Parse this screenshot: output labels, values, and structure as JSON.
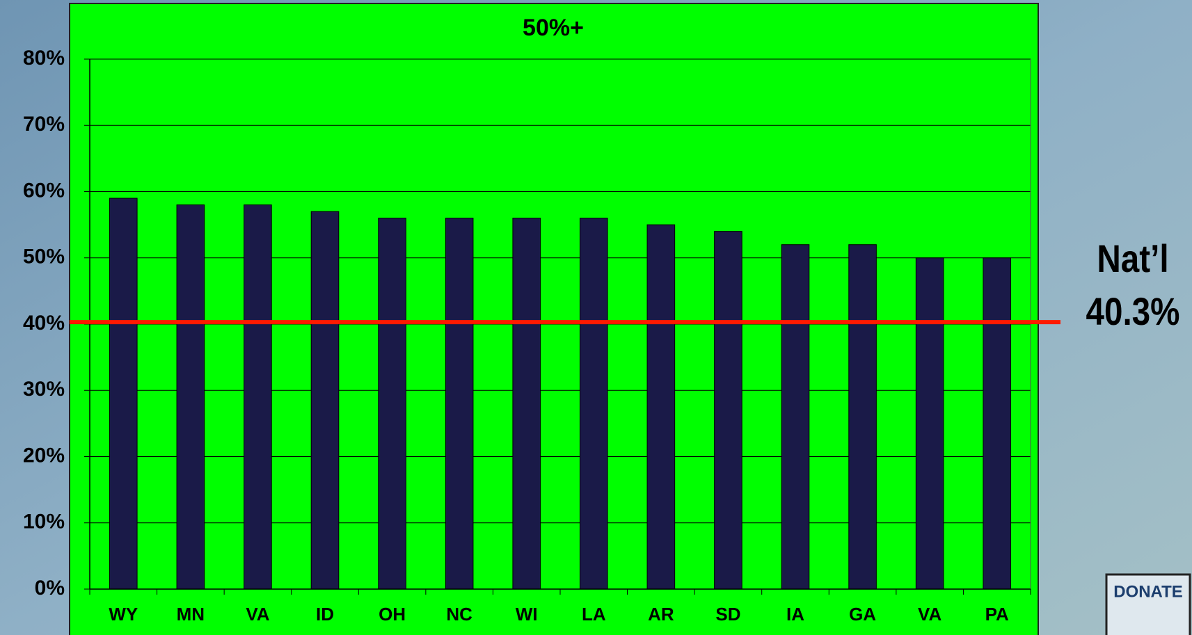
{
  "chart_data": {
    "type": "bar",
    "title": "50%+",
    "categories": [
      "WY",
      "MN",
      "VA",
      "ID",
      "OH",
      "NC",
      "WI",
      "LA",
      "AR",
      "SD",
      "IA",
      "GA",
      "VA",
      "PA"
    ],
    "values": [
      59,
      58,
      58,
      57,
      56,
      56,
      56,
      56,
      55,
      54,
      52,
      52,
      50,
      50
    ],
    "color": "#1a1a48",
    "ylim": [
      0,
      80
    ],
    "yticks": [
      {
        "value": 0,
        "label": "0%"
      },
      {
        "value": 10,
        "label": "10%"
      },
      {
        "value": 20,
        "label": "20%"
      },
      {
        "value": 30,
        "label": "30%"
      },
      {
        "value": 40,
        "label": "40%"
      },
      {
        "value": 50,
        "label": "50%"
      },
      {
        "value": 60,
        "label": "60%"
      },
      {
        "value": 70,
        "label": "70%"
      },
      {
        "value": 80,
        "label": "80%"
      }
    ],
    "grid": true,
    "reference_line": {
      "value": 40.3,
      "name": "Nat’l",
      "label": "40.3%",
      "color": "#ff1a00"
    }
  },
  "logo": {
    "text": "DONATE"
  }
}
